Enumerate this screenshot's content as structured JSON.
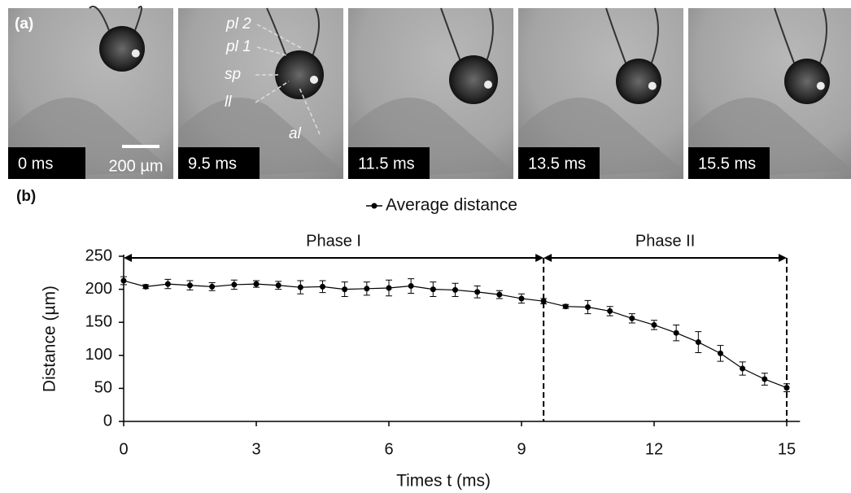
{
  "panel_a": {
    "label": "(a)",
    "frames": [
      "0 ms",
      "9.5 ms",
      "11.5 ms",
      "13.5 ms",
      "15.5 ms"
    ],
    "scale_bar": "200 µm",
    "annotations": [
      "pl 2",
      "pl 1",
      "sp",
      "ll",
      "al"
    ]
  },
  "chart_data": {
    "type": "line",
    "panel_label": "(b)",
    "x_label": "Times t (ms)",
    "y_label": "Distance (µm)",
    "x": [
      0,
      0.5,
      1,
      1.5,
      2,
      2.5,
      3,
      3.5,
      4,
      4.5,
      5,
      5.5,
      6,
      6.5,
      7,
      7.5,
      8,
      8.5,
      9,
      9.5,
      10,
      10.5,
      11,
      11.5,
      12,
      12.5,
      13,
      13.5,
      14,
      14.5,
      15
    ],
    "series": [
      {
        "name": "Average distance",
        "color": "#000000",
        "values": [
          213,
          204,
          208,
          206,
          204,
          207,
          208,
          206,
          203,
          204,
          200,
          201,
          202,
          205,
          200,
          199,
          196,
          192,
          186,
          182,
          174,
          173,
          167,
          156,
          146,
          134,
          120,
          103,
          80,
          64,
          51
        ],
        "errors": [
          6,
          3,
          7,
          7,
          6,
          7,
          5,
          6,
          10,
          9,
          11,
          10,
          12,
          11,
          11,
          10,
          9,
          6,
          7,
          4,
          3,
          10,
          7,
          7,
          7,
          12,
          16,
          12,
          10,
          9,
          6
        ]
      }
    ],
    "phases": [
      {
        "label": "Phase I",
        "start": 0,
        "end": 9.5
      },
      {
        "label": "Phase II",
        "start": 9.5,
        "end": 15
      }
    ],
    "xlim": [
      0,
      15.3
    ],
    "xticks": [
      0,
      3,
      6,
      9,
      12,
      15
    ],
    "ylim": [
      0,
      250
    ],
    "yticks": [
      0,
      50,
      100,
      150,
      200,
      250
    ],
    "legend": "top"
  }
}
